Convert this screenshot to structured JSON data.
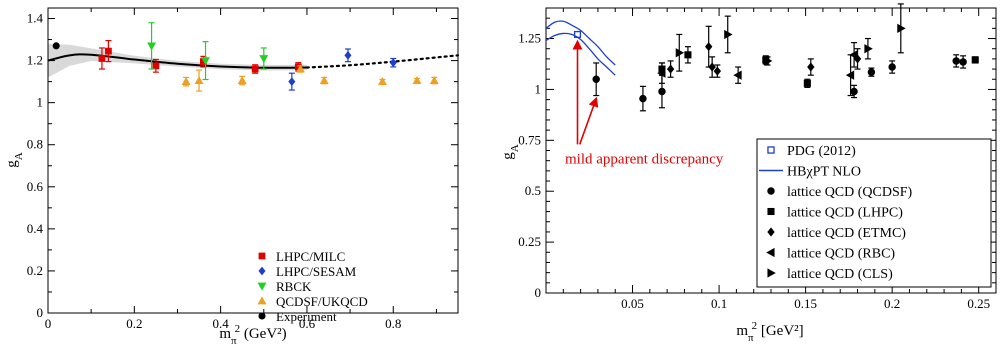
{
  "chart_data": [
    {
      "type": "scatter",
      "xlabel": "m_π² (GeV²)",
      "ylabel": "g_A",
      "xlim": [
        0,
        0.95
      ],
      "ylim": [
        0,
        1.45
      ],
      "xticks": [
        "0",
        "0.2",
        "0.4",
        "0.6",
        "0.8"
      ],
      "yticks": [
        "0",
        "0.2",
        "0.4",
        "0.6",
        "0.8",
        "1",
        "1.2",
        "1.4"
      ],
      "legend_position": "bottom-right",
      "colors": {
        "lhpc_milc": "#e00000",
        "lhpc_sesam": "#1f3fd0",
        "rbck": "#22d022",
        "qcdsf": "#f0a020",
        "experiment": "#000000"
      },
      "series": [
        {
          "name": "LHPC/MILC",
          "marker": "square",
          "color": "#e00000",
          "points": [
            [
              0.125,
              1.21,
              0.05
            ],
            [
              0.14,
              1.245,
              0.05
            ],
            [
              0.25,
              1.175,
              0.03
            ],
            [
              0.36,
              1.195,
              0.025
            ],
            [
              0.48,
              1.16,
              0.02
            ],
            [
              0.58,
              1.17,
              0.02
            ]
          ]
        },
        {
          "name": "LHPC/SESAM",
          "marker": "diamond",
          "color": "#1f3fd0",
          "points": [
            [
              0.565,
              1.1,
              0.04
            ],
            [
              0.695,
              1.225,
              0.03
            ],
            [
              0.8,
              1.19,
              0.02
            ]
          ]
        },
        {
          "name": "RBCK",
          "marker": "triangle-down",
          "color": "#22d022",
          "points": [
            [
              0.24,
              1.27,
              0.11
            ],
            [
              0.365,
              1.2,
              0.09
            ],
            [
              0.5,
              1.21,
              0.05
            ]
          ]
        },
        {
          "name": "QCDSF/UKQCD",
          "marker": "triangle-up",
          "color": "#f0a020",
          "points": [
            [
              0.32,
              1.1,
              0.02
            ],
            [
              0.35,
              1.105,
              0.05
            ],
            [
              0.45,
              1.105,
              0.02
            ],
            [
              0.585,
              1.16,
              0.015
            ],
            [
              0.64,
              1.105,
              0.015
            ],
            [
              0.775,
              1.1,
              0.01
            ],
            [
              0.855,
              1.105,
              0.01
            ],
            [
              0.895,
              1.105,
              0.015
            ]
          ]
        },
        {
          "name": "Experiment",
          "marker": "circle",
          "color": "#000000",
          "points": [
            [
              0.019,
              1.27,
              0
            ]
          ]
        }
      ],
      "fit_curve": {
        "x": [
          0,
          0.05,
          0.1,
          0.2,
          0.3,
          0.4,
          0.5,
          0.6
        ],
        "y": [
          1.2,
          1.225,
          1.228,
          1.205,
          1.185,
          1.172,
          1.166,
          1.167
        ]
      },
      "fit_band_halfwidth": [
        0.08,
        0.05,
        0.03,
        0.018,
        0.014,
        0.013,
        0.013,
        0.013
      ],
      "extrapolation": {
        "x": [
          0.6,
          0.7,
          0.8,
          0.9,
          0.95
        ],
        "y": [
          1.167,
          1.178,
          1.195,
          1.215,
          1.225
        ]
      }
    },
    {
      "type": "scatter",
      "xlabel": "m_π² [GeV²]",
      "ylabel": "g_A",
      "xlim": [
        0,
        0.26
      ],
      "ylim": [
        0,
        1.4
      ],
      "xticks": [
        "0.05",
        "0.1",
        "0.15",
        "0.2",
        "0.25"
      ],
      "yticks": [
        "0",
        "0.25",
        "0.5",
        "0.75",
        "1",
        "1.25"
      ],
      "legend_position": "bottom-right",
      "annotation": "mild apparent discrepancy",
      "colors": {
        "pdg": "#1f3fd0",
        "hbchpt": "#1f3fd0",
        "lattice": "#000000",
        "annotation": "#e00000"
      },
      "pdg": {
        "name": "PDG (2012)",
        "x": 0.0182,
        "y": 1.27
      },
      "hbchpt_nlo": {
        "name": "HBχPT NLO",
        "upper": {
          "x": [
            0,
            0.005,
            0.01,
            0.015,
            0.02,
            0.025,
            0.03,
            0.035,
            0.04
          ],
          "y": [
            1.3,
            1.33,
            1.335,
            1.315,
            1.29,
            1.25,
            1.21,
            1.16,
            1.12
          ]
        },
        "lower": {
          "x": [
            0,
            0.005,
            0.01,
            0.015,
            0.02,
            0.025,
            0.03,
            0.035,
            0.04
          ],
          "y": [
            1.24,
            1.265,
            1.275,
            1.27,
            1.245,
            1.2,
            1.15,
            1.11,
            1.07
          ]
        }
      },
      "series": [
        {
          "name": "lattice QCD (QCDSF)",
          "marker": "circle",
          "points": [
            [
              0.029,
              1.05,
              0.08
            ],
            [
              0.056,
              0.955,
              0.06
            ],
            [
              0.067,
              0.99,
              0.08
            ],
            [
              0.178,
              0.99,
              0.03
            ],
            [
              0.188,
              1.085,
              0.02
            ],
            [
              0.2,
              1.11,
              0.03
            ],
            [
              0.237,
              1.14,
              0.03
            ],
            [
              0.241,
              1.135,
              0.03
            ]
          ]
        },
        {
          "name": "lattice QCD (LHPC)",
          "marker": "square",
          "points": [
            [
              0.067,
              1.1,
              0.03
            ],
            [
              0.082,
              1.17,
              0.04
            ],
            [
              0.127,
              1.145,
              0.02
            ],
            [
              0.151,
              1.03,
              0.02
            ],
            [
              0.248,
              1.145,
              0.015
            ]
          ]
        },
        {
          "name": "lattice QCD (ETMC)",
          "marker": "diamond",
          "points": [
            [
              0.072,
              1.1,
              0.04
            ],
            [
              0.094,
              1.21,
              0.1
            ],
            [
              0.096,
              1.11,
              0.05
            ],
            [
              0.099,
              1.09,
              0.03
            ],
            [
              0.153,
              1.11,
              0.04
            ],
            [
              0.18,
              1.15,
              0.05
            ]
          ]
        },
        {
          "name": "lattice QCD (RBC)",
          "marker": "triangle-left",
          "points": [
            [
              0.067,
              1.08,
              0.05
            ],
            [
              0.111,
              1.07,
              0.04
            ],
            [
              0.176,
              1.07,
              0.1
            ],
            [
              0.178,
              1.17,
              0.06
            ]
          ]
        },
        {
          "name": "lattice QCD (CLS)",
          "marker": "triangle-right",
          "points": [
            [
              0.077,
              1.18,
              0.09
            ],
            [
              0.105,
              1.27,
              0.09
            ],
            [
              0.128,
              1.14,
              0.02
            ],
            [
              0.186,
              1.2,
              0.05
            ],
            [
              0.205,
              1.3,
              0.12
            ]
          ]
        }
      ]
    }
  ]
}
